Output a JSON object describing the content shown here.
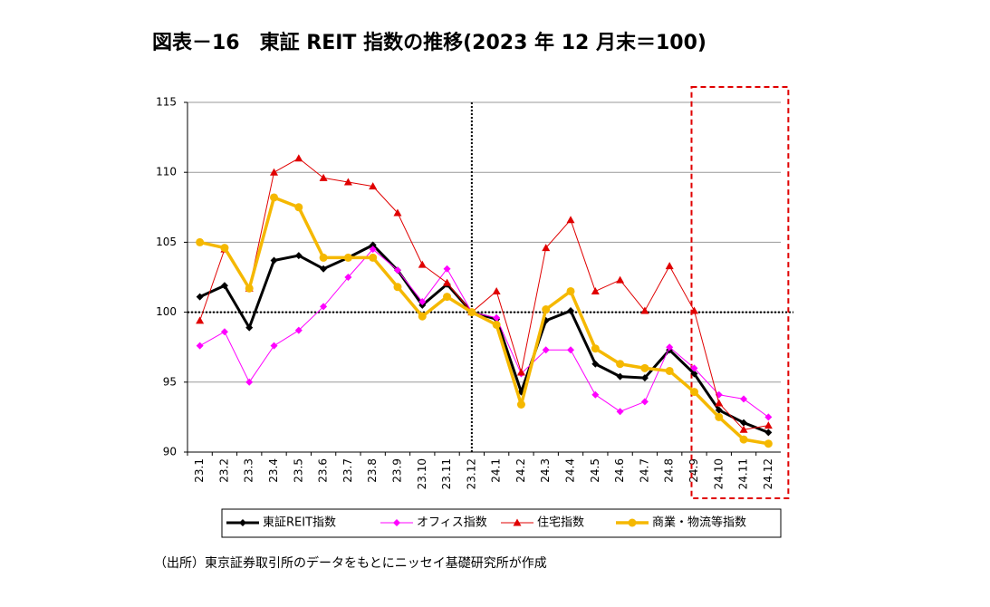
{
  "chart_data": {
    "type": "line",
    "title": "図表－16　東証 REIT 指数の推移(2023 年 12 月末＝100)",
    "source": "（出所）東京証券取引所のデータをもとにニッセイ基礎研究所が作成",
    "categories": [
      "23.1",
      "23.2",
      "23.3",
      "23.4",
      "23.5",
      "23.6",
      "23.7",
      "23.8",
      "23.9",
      "23.10",
      "23.11",
      "23.12",
      "24.1",
      "24.2",
      "24.3",
      "24.4",
      "24.5",
      "24.6",
      "24.7",
      "24.8",
      "24.9",
      "24.10",
      "24.11",
      "24.12"
    ],
    "series": [
      {
        "name": "東証REIT指数",
        "color": "#000000",
        "marker": "diamond",
        "width": 3,
        "values": [
          101.1,
          101.9,
          98.9,
          103.7,
          104.05,
          103.1,
          103.9,
          104.8,
          103.0,
          100.5,
          102.0,
          100,
          99.5,
          94.3,
          99.4,
          100.1,
          96.3,
          95.4,
          95.3,
          97.3,
          95.6,
          93.0,
          92.1,
          91.4
        ]
      },
      {
        "name": "オフィス指数",
        "color": "#ff00ff",
        "marker": "diamond",
        "width": 1,
        "values": [
          97.6,
          98.6,
          95.0,
          97.6,
          98.7,
          100.4,
          102.5,
          104.5,
          103.0,
          100.75,
          103.1,
          100,
          99.6,
          95.6,
          97.3,
          97.3,
          94.1,
          92.9,
          93.6,
          97.5,
          96.0,
          94.1,
          93.8,
          92.5
        ]
      },
      {
        "name": "住宅指数",
        "color": "#e00000",
        "marker": "triangle",
        "width": 1,
        "values": [
          99.4,
          104.5,
          101.7,
          110.0,
          111.0,
          109.6,
          109.3,
          109.0,
          107.1,
          103.4,
          102.1,
          100,
          101.5,
          95.7,
          104.6,
          106.6,
          101.5,
          102.3,
          100.1,
          103.3,
          100.1,
          93.5,
          91.6,
          91.9
        ]
      },
      {
        "name": "商業・物流等指数",
        "color": "#f5b800",
        "marker": "circle",
        "width": 3.5,
        "values": [
          105.0,
          104.6,
          101.7,
          108.2,
          107.5,
          103.9,
          103.9,
          103.9,
          101.8,
          99.7,
          101.1,
          100,
          99.1,
          93.4,
          100.2,
          101.5,
          97.4,
          96.3,
          96.0,
          95.8,
          94.3,
          92.5,
          90.9,
          90.6
        ]
      }
    ],
    "ylim": [
      90,
      115
    ],
    "yticks": [
      90,
      95,
      100,
      105,
      110,
      115
    ],
    "grid": true,
    "reference_line": 100,
    "divider": "23.12",
    "highlight_range": [
      "24.9",
      "24.12"
    ],
    "legend": "bottom"
  }
}
